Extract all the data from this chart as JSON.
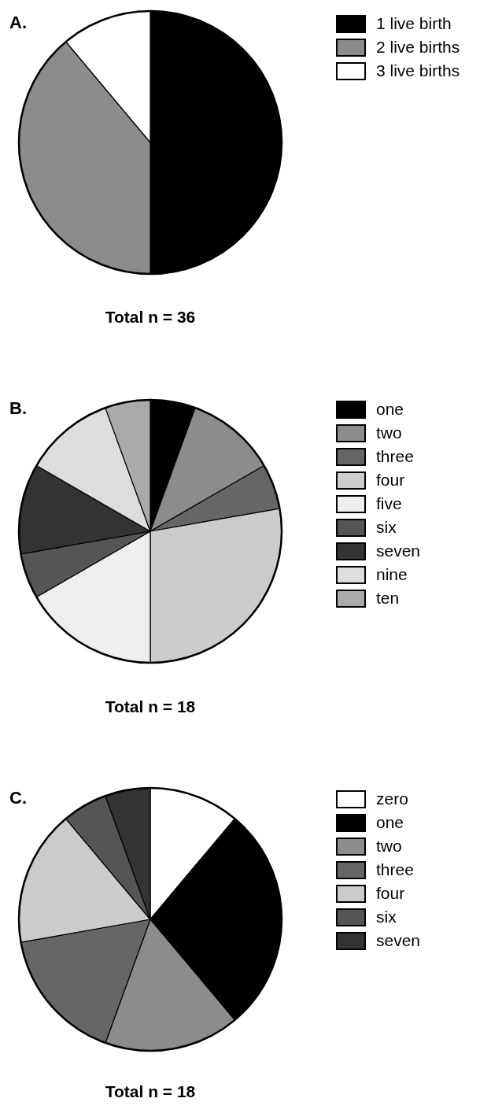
{
  "chart_data": [
    {
      "type": "pie",
      "title": "A.",
      "categories": [
        "1 live birth",
        "2 live births",
        "3 live births"
      ],
      "values": [
        50,
        38.9,
        11.1
      ],
      "colors": [
        "#000000",
        "#8c8c8c",
        "#ffffff"
      ],
      "legend": "right",
      "annotations": [
        "Total n = 36"
      ]
    },
    {
      "type": "pie",
      "title": "B.",
      "categories": [
        "one",
        "two",
        "three",
        "four",
        "five",
        "six",
        "seven",
        "nine",
        "ten"
      ],
      "values": [
        5.56,
        11.11,
        5.56,
        27.78,
        16.67,
        5.56,
        11.11,
        11.11,
        5.56
      ],
      "colors": [
        "#000000",
        "#8c8c8c",
        "#666666",
        "#cccccc",
        "#eeeeee",
        "#555555",
        "#333333",
        "#dddddd",
        "#aaaaaa"
      ],
      "legend": "right",
      "annotations": [
        "Total n = 18"
      ]
    },
    {
      "type": "pie",
      "title": "C.",
      "categories": [
        "zero",
        "one",
        "two",
        "three",
        "four",
        "six",
        "seven"
      ],
      "values": [
        11.11,
        27.78,
        16.67,
        16.67,
        16.67,
        5.56,
        5.56
      ],
      "colors": [
        "#ffffff",
        "#000000",
        "#8c8c8c",
        "#666666",
        "#cccccc",
        "#555555",
        "#333333"
      ],
      "legend": "right",
      "annotations": [
        "Total n = 18"
      ]
    }
  ]
}
